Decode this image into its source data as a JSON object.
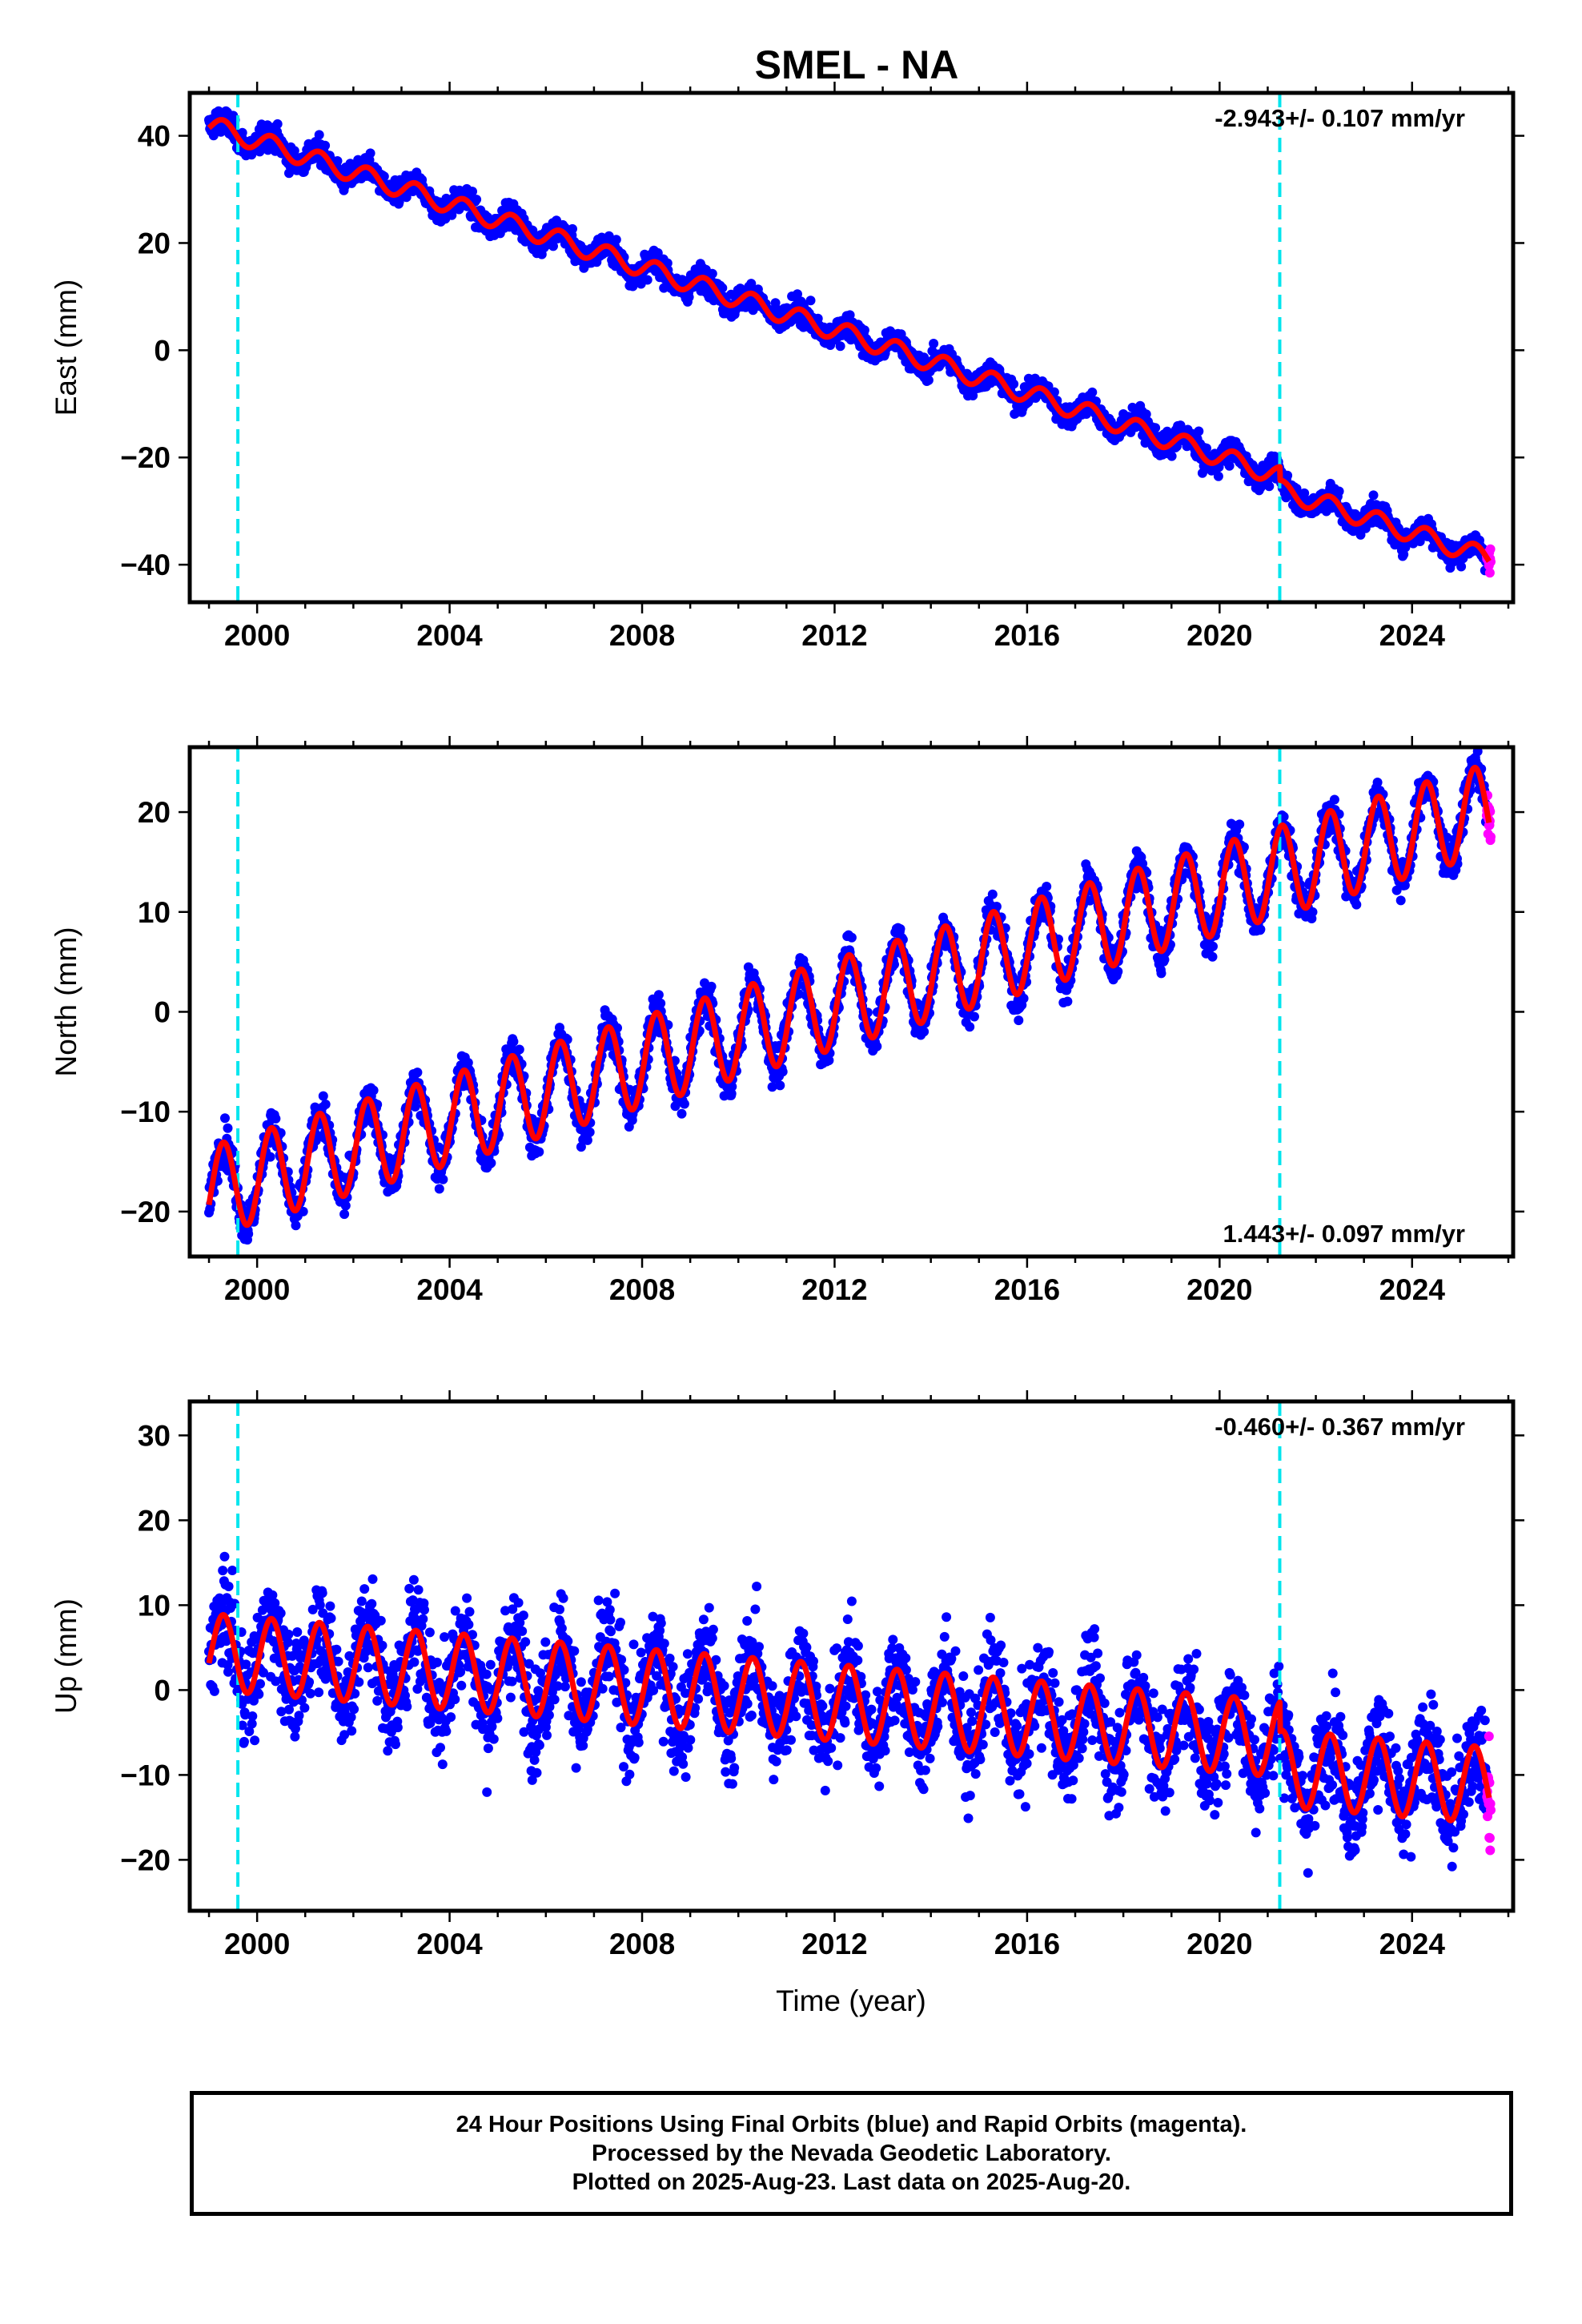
{
  "title": "SMEL - NA",
  "x_tick_labels": [
    "2000",
    "2004",
    "2008",
    "2012",
    "2016",
    "2020",
    "2024"
  ],
  "x_axis_label": "Time (year)",
  "colors": {
    "final_orbits": "#0000ff",
    "rapid_orbits": "#ff00ff",
    "model_fit": "#ff0000",
    "equipment_change_lines": "#00e5ee"
  },
  "footer": {
    "line1": "24 Hour Positions Using Final Orbits (blue) and Rapid Orbits (magenta).",
    "line2": "Processed by the Nevada Geodetic Laboratory.",
    "line3": "Plotted on 2025-Aug-23. Last data on 2025-Aug-20."
  },
  "chart_data": [
    {
      "type": "scatter",
      "panel": "east",
      "ylabel": "East (mm)",
      "xlim": [
        1998.6,
        2026.1
      ],
      "ylim": [
        -47,
        48
      ],
      "yticks": [
        -40,
        -20,
        0,
        20,
        40
      ],
      "ytick_labels": [
        "40",
        "20",
        "0",
        "−20",
        "−40"
      ],
      "velocity_label": "-2.943+/- 0.107 mm/yr",
      "velocity_label_position": "top-right",
      "equipment_change_epochs": [
        1999.6,
        2021.25
      ],
      "model": {
        "start_year": 1999.0,
        "end_year": 2025.6,
        "value_at_start": 42.0,
        "rate_mm_per_yr": -2.943,
        "annual_amplitude_mm": 1.8,
        "offsets": [
          {
            "year": 2021.25,
            "value": -2.5
          }
        ]
      },
      "scatter_noise_mm": 1.6,
      "series": [
        {
          "name": "Final Orbits (blue)",
          "years": [
            1999.0,
            2025.55
          ]
        },
        {
          "name": "Rapid Orbits (magenta)",
          "years": [
            2025.55,
            2025.64
          ]
        },
        {
          "name": "Model fit",
          "years": [
            1999.0,
            2025.6
          ]
        }
      ]
    },
    {
      "type": "scatter",
      "panel": "north",
      "ylabel": "North (mm)",
      "xlim": [
        1998.6,
        2026.1
      ],
      "ylim": [
        -24.5,
        26.5
      ],
      "yticks": [
        -20,
        -10,
        0,
        10,
        20
      ],
      "ytick_labels": [
        "20",
        "10",
        "0",
        "−10",
        "−20"
      ],
      "velocity_label": "1.443+/- 0.097 mm/yr",
      "velocity_label_position": "bottom-right",
      "equipment_change_epochs": [
        1999.6,
        2021.25
      ],
      "model": {
        "start_year": 1999.0,
        "end_year": 2025.6,
        "value_at_start": -18.0,
        "rate_mm_per_yr": 1.443,
        "annual_amplitude_mm": 4.5,
        "offsets": []
      },
      "scatter_noise_mm": 1.4,
      "series": [
        {
          "name": "Final Orbits (blue)",
          "years": [
            1999.0,
            2025.55
          ]
        },
        {
          "name": "Rapid Orbits (magenta)",
          "years": [
            2025.55,
            2025.64
          ]
        },
        {
          "name": "Model fit",
          "years": [
            1999.0,
            2025.6
          ]
        }
      ]
    },
    {
      "type": "scatter",
      "panel": "up",
      "ylabel": "Up (mm)",
      "xlim": [
        1998.6,
        2026.1
      ],
      "ylim": [
        -26,
        34
      ],
      "yticks": [
        -20,
        -10,
        0,
        10,
        20,
        30
      ],
      "ytick_labels": [
        "30",
        "20",
        "10",
        "0",
        "−10",
        "−20"
      ],
      "velocity_label": "-0.460+/- 0.367 mm/yr",
      "velocity_label_position": "top-right",
      "equipment_change_epochs": [
        1999.6,
        2021.25
      ],
      "model": {
        "start_year": 1999.0,
        "end_year": 2025.6,
        "value_at_start": 4.5,
        "rate_mm_per_yr": -0.46,
        "annual_amplitude_mm": 4.5,
        "offsets": [
          {
            "year": 2021.25,
            "value": -3.5
          }
        ]
      },
      "scatter_noise_mm": 4.2,
      "series": [
        {
          "name": "Final Orbits (blue)",
          "years": [
            1999.0,
            2025.55
          ]
        },
        {
          "name": "Rapid Orbits (magenta)",
          "years": [
            2025.55,
            2025.64
          ]
        },
        {
          "name": "Model fit",
          "years": [
            1999.0,
            2025.6
          ]
        }
      ]
    }
  ]
}
